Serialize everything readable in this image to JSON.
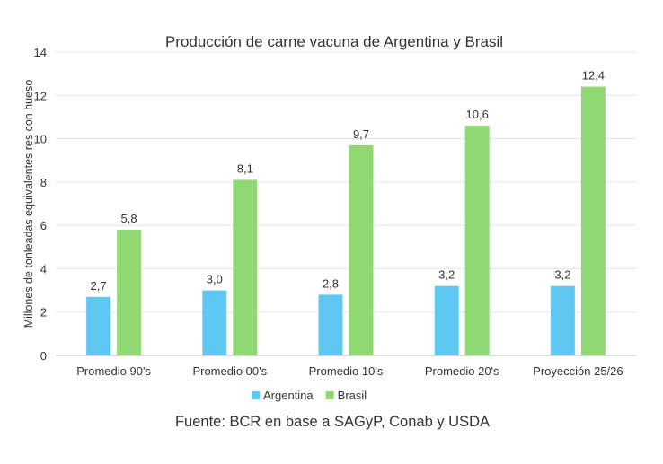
{
  "chart_data": {
    "type": "bar",
    "title": "Producción de carne vacuna de Argentina y Brasil",
    "ylabel": "Millones de tonleadas equivalentes res con hueso",
    "xlabel": "",
    "categories": [
      "Promedio 90's",
      "Promedio 00's",
      "Promedio 10's",
      "Promedio 20's",
      "Proyección 25/26"
    ],
    "series": [
      {
        "name": "Argentina",
        "values": [
          2.7,
          3.0,
          2.8,
          3.2,
          3.2
        ],
        "labels": [
          "2,7",
          "3,0",
          "2,8",
          "3,2",
          "3,2"
        ],
        "color": "#5ec8f2"
      },
      {
        "name": "Brasil",
        "values": [
          5.8,
          8.1,
          9.7,
          10.6,
          12.4
        ],
        "labels": [
          "5,8",
          "8,1",
          "9,7",
          "10,6",
          "12,4"
        ],
        "color": "#8fd872"
      }
    ],
    "ylim": [
      0,
      14
    ],
    "yticks": [
      "0",
      "2",
      "4",
      "6",
      "8",
      "10",
      "12",
      "14"
    ],
    "grid": true,
    "legend": "bottom",
    "source": "Fuente: BCR en base a SAGyP, Conab y USDA"
  }
}
